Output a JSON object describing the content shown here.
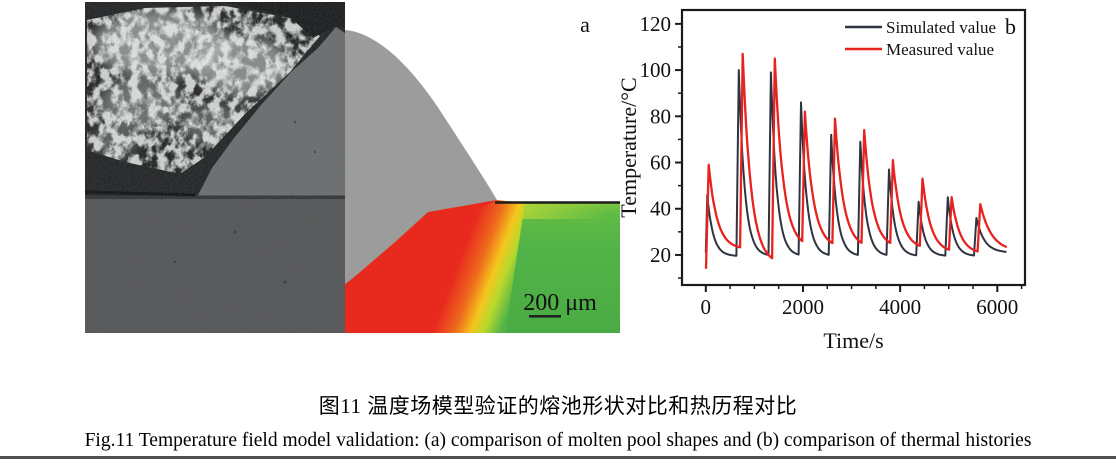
{
  "figure": {
    "panel_a": {
      "label": "a",
      "scale_bar_label": "200 μm"
    },
    "panel_b_label": "b",
    "caption_cn": "图11  温度场模型验证的熔池形状对比和热历程对比",
    "caption_en": "Fig.11  Temperature field model validation: (a) comparison of molten pool shapes and (b) comparison of thermal histories"
  },
  "colors": {
    "simulated_line": "#2e3440",
    "measured_line": "#e8231f",
    "axis": "#1a1a1a",
    "melt_red": "#e82a1e",
    "melt_orange": "#ee6b1c",
    "melt_yellow": "#f5c61d",
    "substrate_green": "#52b348",
    "bead_gray": "#9c9c9c"
  },
  "chart_data": {
    "type": "line",
    "title": "",
    "xlabel": "Time/s",
    "ylabel": "Temperature/°C",
    "xlim": [
      -490,
      6570
    ],
    "ylim": [
      7,
      126
    ],
    "x_major_ticks": [
      0,
      2000,
      4000,
      6000
    ],
    "x_minor_step": 500,
    "y_major_ticks": [
      20,
      40,
      60,
      80,
      100,
      120
    ],
    "y_minor_step": 10,
    "grid": false,
    "legend_position": "top-inside",
    "series": [
      {
        "name": "Simulated value",
        "color": "#2e3440",
        "peak_times": [
          30,
          680,
          1340,
          1960,
          2580,
          3180,
          3770,
          4380,
          4980,
          5570
        ],
        "peak_temps": [
          46,
          100,
          99,
          86,
          72,
          69,
          57,
          43,
          45,
          36
        ],
        "trough_temps": [
          21,
          19.5,
          19.5,
          19.5,
          19.5,
          19.5,
          19.5,
          19.5,
          19.5,
          19.5
        ],
        "rise_time_s": 50,
        "decay_tau_s": 120,
        "end_time_s": 6200,
        "end_temp": 21
      },
      {
        "name": "Measured value",
        "color": "#e8231f",
        "peak_times": [
          60,
          760,
          1420,
          2040,
          2660,
          3260,
          3850,
          4460,
          5060,
          5650
        ],
        "peak_temps": [
          59,
          107,
          105,
          82,
          79,
          74,
          61,
          53,
          45,
          42
        ],
        "trough_temps": [
          14,
          22.5,
          16,
          23,
          23,
          23,
          23,
          22.5,
          21,
          20.5
        ],
        "rise_time_s": 55,
        "decay_tau_s": 170,
        "end_time_s": 6200,
        "end_temp": 21.5
      }
    ]
  }
}
